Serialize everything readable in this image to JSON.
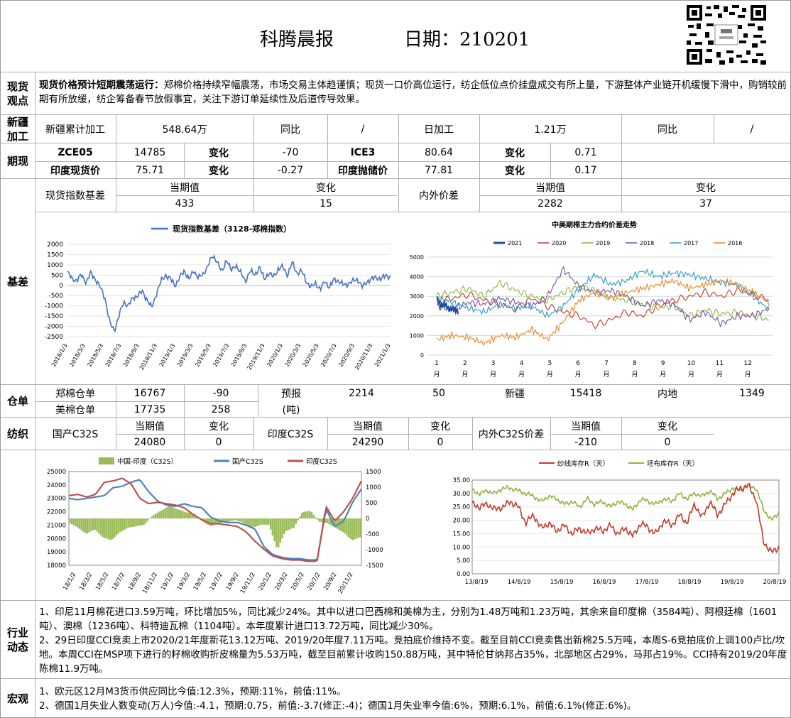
{
  "header": {
    "title": "科腾晨报",
    "date_label": "日期：210201"
  },
  "spot_view": {
    "label": "现货观点",
    "heading": "现货价格预计短期震荡运行：",
    "text": "郑棉价格持续窄幅震荡，市场交易主体趋谨慎；现货一口价高位运行，纺企低位点价挂盘成交有所上量，下游整体产业链开机缓慢下滑中，购销较前期有所放缓，纺企筹备春节放假事宜，关注下游订单延续性及后道传导效果。"
  },
  "xinjiang": {
    "label": "新疆加工",
    "cum_label": "新疆累计加工",
    "cum_value": "548.64万",
    "yoy_label": "同比",
    "yoy_value": "/",
    "daily_label": "日加工",
    "daily_value": "1.21万",
    "yoy2_label": "同比",
    "yoy2_value": "/"
  },
  "futures": {
    "label": "期现",
    "r1": {
      "a": "ZCE05",
      "b": "14785",
      "c": "变化",
      "d": "-70",
      "e": "ICE3",
      "f": "80.64",
      "g": "变化",
      "h": "0.71"
    },
    "r2": {
      "a": "印度现货价",
      "b": "75.71",
      "c": "变化",
      "d": "-0.27",
      "e": "印度抛储价",
      "f": "77.81",
      "g": "变化",
      "h": "0.17"
    }
  },
  "basis": {
    "label": "基差",
    "idx_label": "现货指数基差",
    "cur_label": "当期值",
    "chg_label": "变化",
    "idx_cur": "433",
    "idx_chg": "15",
    "spread_label": "内外价差",
    "cur_label2": "当期值",
    "chg_label2": "变化",
    "spread_cur": "2282",
    "spread_chg": "37"
  },
  "chart_data": [
    {
      "type": "line",
      "title": "",
      "legend": [
        "现货指数基差（3128-郑棉指数）"
      ],
      "ylim": [
        -2500,
        2000
      ],
      "yticks": [
        "2000",
        "1500",
        "1000",
        "500",
        "0",
        "-500",
        "-1000",
        "-1500",
        "-2000",
        "-2500"
      ],
      "xticks": [
        "2018/1/3",
        "2018/3/3",
        "2018/5/3",
        "2018/7/3",
        "2018/9/3",
        "2018/11/3",
        "2019/1/3",
        "2019/3/3",
        "2019/5/3",
        "2019/7/3",
        "2019/9/3",
        "2019/11/3",
        "2020/1/3",
        "2020/3/3",
        "2020/5/3",
        "2020/7/3",
        "2020/9/3",
        "2020/11/3",
        "2021/1/3"
      ],
      "color": "#4472c4",
      "series": [
        {
          "values": [
            650,
            300,
            250,
            500,
            150,
            600,
            300,
            -100,
            -600,
            -1800,
            -2200,
            -1500,
            -800,
            -1000,
            -600,
            -500,
            -300,
            -700,
            -1100,
            -400,
            200,
            500,
            300,
            0,
            400,
            700,
            300,
            700,
            400,
            500,
            1000,
            1400,
            1200,
            600,
            1300,
            700,
            1000,
            600,
            200,
            700,
            500,
            900,
            300,
            600,
            400,
            800,
            900,
            500,
            1100,
            600,
            700,
            200,
            -100,
            100,
            -200,
            200,
            -100,
            300,
            200,
            0,
            100,
            200,
            300,
            -100,
            200,
            300,
            400,
            300,
            500,
            400
          ]
        }
      ]
    },
    {
      "type": "line",
      "title": "中美期棉主力合约价差走势",
      "legend": [
        "2021",
        "2020",
        "2019",
        "2018",
        "2017",
        "2016"
      ],
      "ylim": [
        0,
        5000
      ],
      "yticks": [
        "5000",
        "4000",
        "3000",
        "2000",
        "1000",
        "0"
      ],
      "xticks": [
        "1月",
        "2月",
        "3月",
        "4月",
        "5月",
        "6月",
        "7月",
        "8月",
        "9月",
        "10月",
        "11月",
        "12月"
      ],
      "series": [
        {
          "name": "2021",
          "color": "#1f4e9c",
          "values": [
            2900,
            2500,
            2600,
            2300,
            2400,
            2200
          ]
        },
        {
          "name": "2020",
          "color": "#c0392b",
          "values": [
            2700,
            2900,
            3100,
            2800,
            2600,
            2300,
            2900,
            2500,
            2200,
            2000,
            1500,
            1800,
            2200,
            2000,
            2500,
            2800,
            3000,
            3200,
            3000,
            3300,
            3100,
            2800
          ]
        },
        {
          "name": "2019",
          "color": "#8db33b",
          "values": [
            3000,
            3200,
            3400,
            3000,
            3700,
            3300,
            3000,
            2800,
            3200,
            3500,
            3300,
            2900,
            2800,
            2600,
            2400,
            2500,
            2000,
            2300,
            2100,
            2200,
            2000,
            1800
          ]
        },
        {
          "name": "2018",
          "color": "#7b4fa0",
          "values": [
            2500,
            2300,
            2700,
            2600,
            2900,
            2700,
            2500,
            3000,
            4400,
            3500,
            3200,
            3300,
            3000,
            2500,
            2800,
            2600,
            1800,
            2200,
            1600,
            2000,
            2000,
            2400
          ]
        },
        {
          "name": "2017",
          "color": "#2e9ac8",
          "values": [
            2900,
            2700,
            2400,
            2200,
            2600,
            2400,
            2500,
            2000,
            2500,
            3400,
            4100,
            3600,
            3800,
            4300,
            4000,
            4200,
            4100,
            3900,
            3700,
            3600,
            3000,
            2300
          ]
        },
        {
          "name": "2016",
          "color": "#e8862a",
          "values": [
            800,
            1000,
            900,
            600,
            1000,
            900,
            1300,
            800,
            1700,
            2800,
            3200,
            2900,
            3200,
            3400,
            3600,
            3800,
            3400,
            3600,
            3800,
            3600,
            3200,
            2700
          ]
        }
      ]
    }
  ],
  "warehouse": {
    "label": "仓单",
    "zheng_label": "郑棉仓单",
    "zheng_val": "16767",
    "zheng_chg": "-90",
    "us_label": "美棉仓单",
    "us_val": "17735",
    "us_chg": "258",
    "fore_label": "预报",
    "fore_unit": "(吨)",
    "fore_val": "2214",
    "fore_chg": "50",
    "xj_label": "新疆",
    "xj_val": "15418",
    "nd_label": "内地",
    "nd_val": "1349"
  },
  "textile": {
    "label": "纺织",
    "dom_label": "国产C32S",
    "cur": "当期值",
    "chg": "变化",
    "dom_cur": "24080",
    "dom_chg": "0",
    "ind_label": "印度C32S",
    "ind_cur": "24290",
    "ind_chg": "0",
    "spr_label": "内外C32S价差",
    "spr_cur": "-210",
    "spr_chg": "0"
  },
  "chart_data_yarn": {
    "type": "line",
    "legend": [
      "中国-印度（C32S）",
      "国产C32S",
      "印度C32S"
    ],
    "colors": [
      "#9bbb59",
      "#4f81bd",
      "#c0504d"
    ],
    "yticks_left": [
      "25000",
      "24000",
      "23000",
      "22000",
      "21000",
      "20000",
      "19000",
      "18000"
    ],
    "yticks_right": [
      "1500",
      "1000",
      "500",
      "0",
      "-500",
      "-1000",
      "-1500"
    ],
    "xticks": [
      "18/1/2",
      "18/3/2",
      "18/5/2",
      "18/7/2",
      "18/9/2",
      "18/11/2",
      "19/1/2",
      "19/3/2",
      "19/5/2",
      "19/7/2",
      "19/9/2",
      "19/11/2",
      "20/1/2",
      "20/3/2",
      "20/5/2",
      "20/7/2",
      "20/9/2",
      "20/11/2"
    ]
  },
  "chart_data_stock": {
    "type": "line",
    "legend": [
      "纱线库存R（天）",
      "坯布库存R（天）"
    ],
    "colors": [
      "#c0392b",
      "#8db33b"
    ],
    "yticks": [
      "35.00",
      "30.00",
      "25.00",
      "20.00",
      "15.00",
      "10.00",
      "5.00",
      "0.00"
    ],
    "xticks": [
      "13/8/19",
      "14/8/19",
      "15/8/19",
      "16/8/19",
      "17/8/19",
      "18/8/19",
      "19/8/19",
      "20/8/19"
    ]
  },
  "industry": {
    "label": "行业动态",
    "p1": "1、印尼11月棉花进口3.59万吨，环比增加5%，同比减少24%。其中以进口巴西棉和美棉为主，分别为1.48万吨和1.23万吨，其余来自印度棉（3584吨）、阿根廷棉（1601吨）、澳棉（1236吨）、科特迪瓦棉（1104吨）。本年度累计进口13.72万吨，同比减少30%。",
    "p2": "2、29日印度CCI竞卖上市2020/21年度新花13.12万吨、2019/20年度7.11万吨。竞拍底价维持不变。截至目前CCI竞卖售出新棉25.5万吨，本周S-6竞拍底价上调100卢比/坎地。本周CCI在MSP项下进行的籽棉收购折皮棉量为5.53万吨，截至目前累计收购150.88万吨，其中特伦甘纳邦占35%，北部地区占29%，马邦占19%。CCI持有2019/20年度陈棉11.9万吨。"
  },
  "macro": {
    "label": "宏观",
    "p1": "1、欧元区12月M3货币供应同比今值:12.3%，预期:11%，前值:11%。",
    "p2": "2、德国1月失业人数变动(万人)今值:-4.1，预期:0.75，前值:-3.7(修正:-4)；德国1月失业率今值:6%，预期:6.1%，前值:6.1%(修正:6%)。"
  }
}
